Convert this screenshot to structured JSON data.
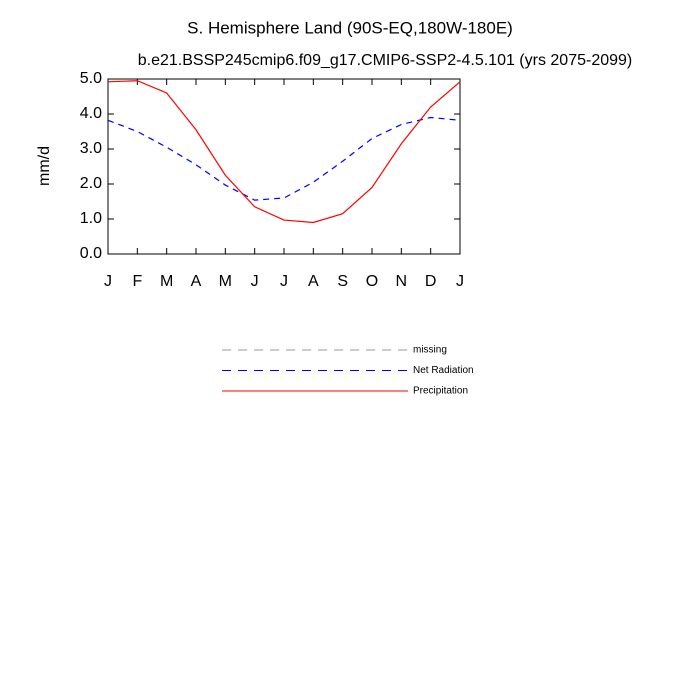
{
  "chart_data": {
    "type": "line",
    "title": "S. Hemisphere Land (90S-EQ,180W-180E)",
    "subtitle": "b.e21.BSSP245cmip6.f09_g17.CMIP6-SSP2-4.5.101 (yrs 2075-2099)",
    "y_label": "mm/d",
    "categories": [
      "J",
      "F",
      "M",
      "A",
      "M",
      "J",
      "J",
      "A",
      "S",
      "O",
      "N",
      "D",
      "J"
    ],
    "series": [
      {
        "name": "missing",
        "color": "#999999",
        "linestyle": "dashed",
        "values": [
          null,
          null,
          null,
          null,
          null,
          null,
          null,
          null,
          null,
          null,
          null,
          null,
          null
        ]
      },
      {
        "name": "Net Radiation",
        "color": "#0000ff",
        "linestyle": "dashed",
        "values": [
          3.82,
          3.5,
          3.05,
          2.55,
          1.97,
          1.54,
          1.6,
          2.05,
          2.65,
          3.3,
          3.7,
          3.9,
          3.82
        ]
      },
      {
        "name": "Precipitation",
        "color": "#ff0000",
        "linestyle": "solid",
        "values": [
          4.92,
          4.95,
          4.6,
          3.55,
          2.25,
          1.35,
          0.97,
          0.9,
          1.15,
          1.9,
          3.15,
          4.2,
          4.92
        ]
      }
    ],
    "ylim": [
      0,
      5
    ],
    "yticks": [
      {
        "value": 0,
        "label": "0.0"
      },
      {
        "value": 1,
        "label": "1.0"
      },
      {
        "value": 2,
        "label": "2.0"
      },
      {
        "value": 3,
        "label": "3.0"
      },
      {
        "value": 4,
        "label": "4.0"
      },
      {
        "value": 5,
        "label": "5.0"
      }
    ]
  }
}
